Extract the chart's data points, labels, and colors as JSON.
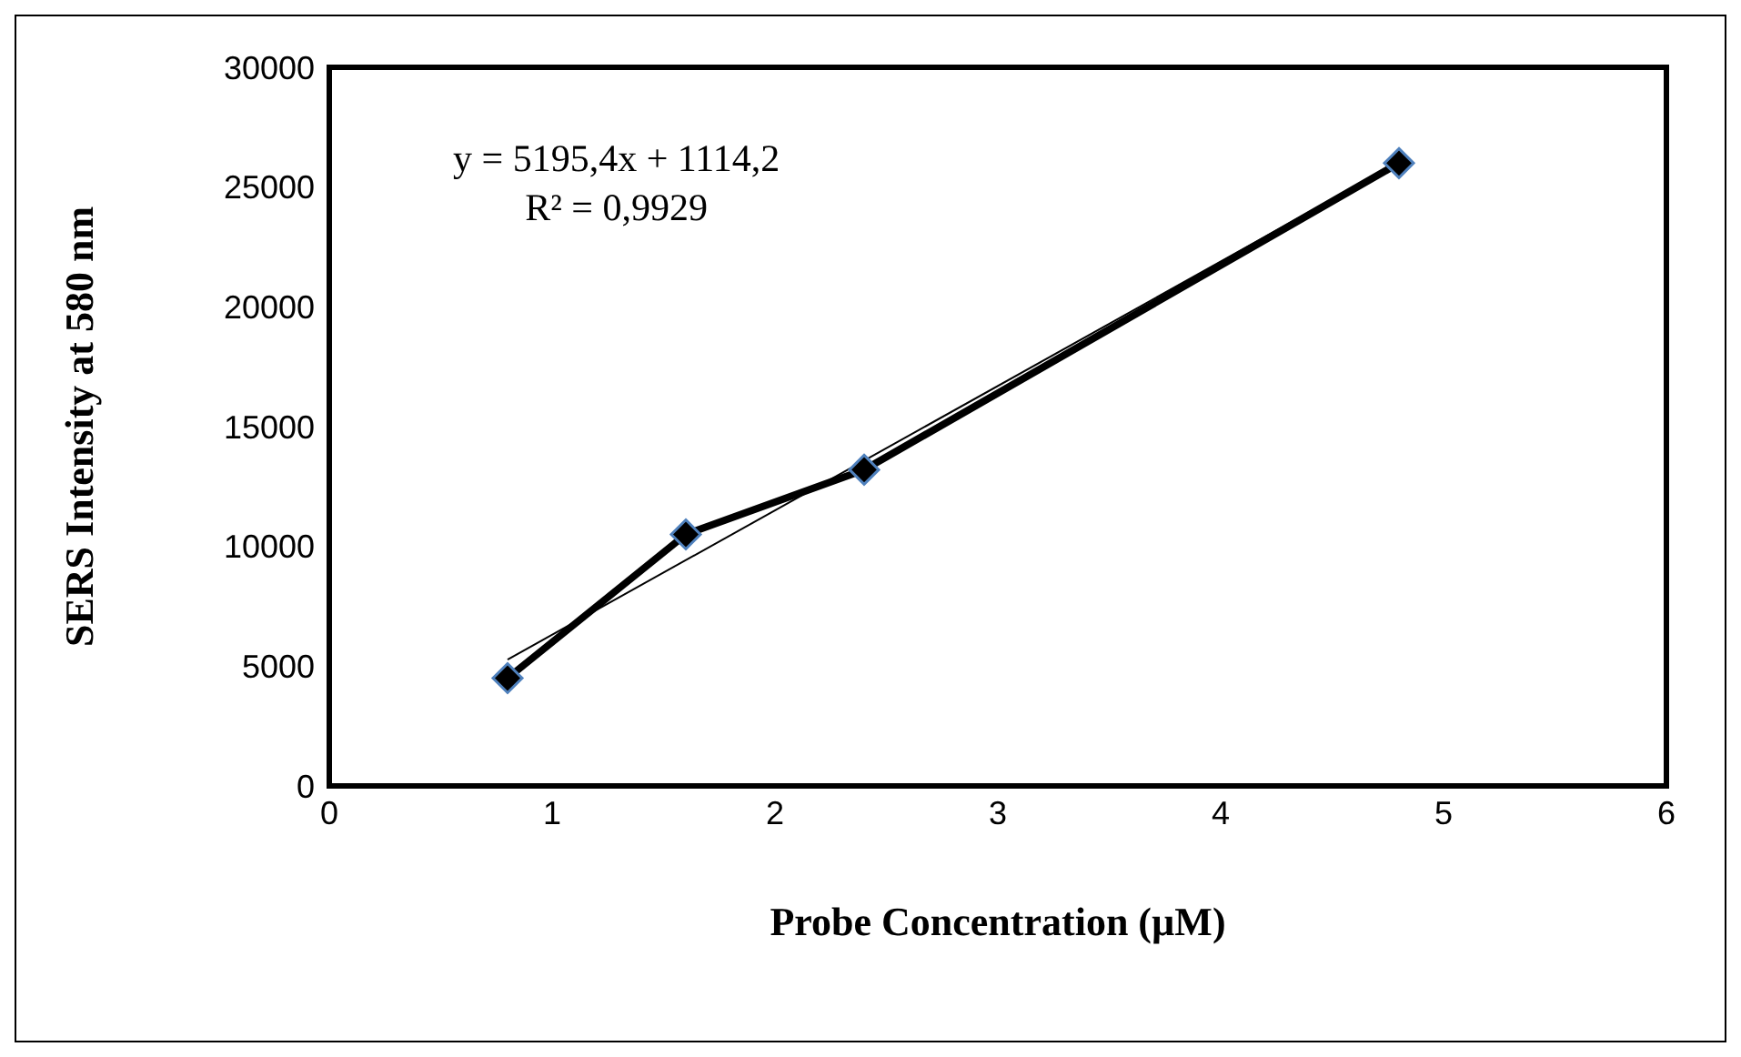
{
  "chart_data": {
    "type": "line",
    "xlabel": "Probe Concentration (µM)",
    "ylabel": "SERS Intensity at 580 nm",
    "x": [
      0.8,
      1.6,
      2.4,
      4.8
    ],
    "series": [
      {
        "type": "line",
        "color": "#000000",
        "values": [
          4500,
          10500,
          13200,
          26000
        ],
        "marker": "diamond"
      },
      {
        "type": "line",
        "color": "#000000",
        "x": [
          0.8,
          4.8
        ],
        "values": [
          5270,
          26050
        ],
        "marker": "none"
      }
    ],
    "xlim": [
      0,
      6
    ],
    "xticks": [
      0,
      1,
      2,
      3,
      4,
      5,
      6
    ],
    "ylim": [
      0,
      30000
    ],
    "yticks": [
      0,
      5000,
      10000,
      15000,
      20000,
      25000,
      30000
    ],
    "annotations": [
      "y = 5195,4x + 1114,2",
      "R² = 0,9929"
    ],
    "grid": false
  }
}
